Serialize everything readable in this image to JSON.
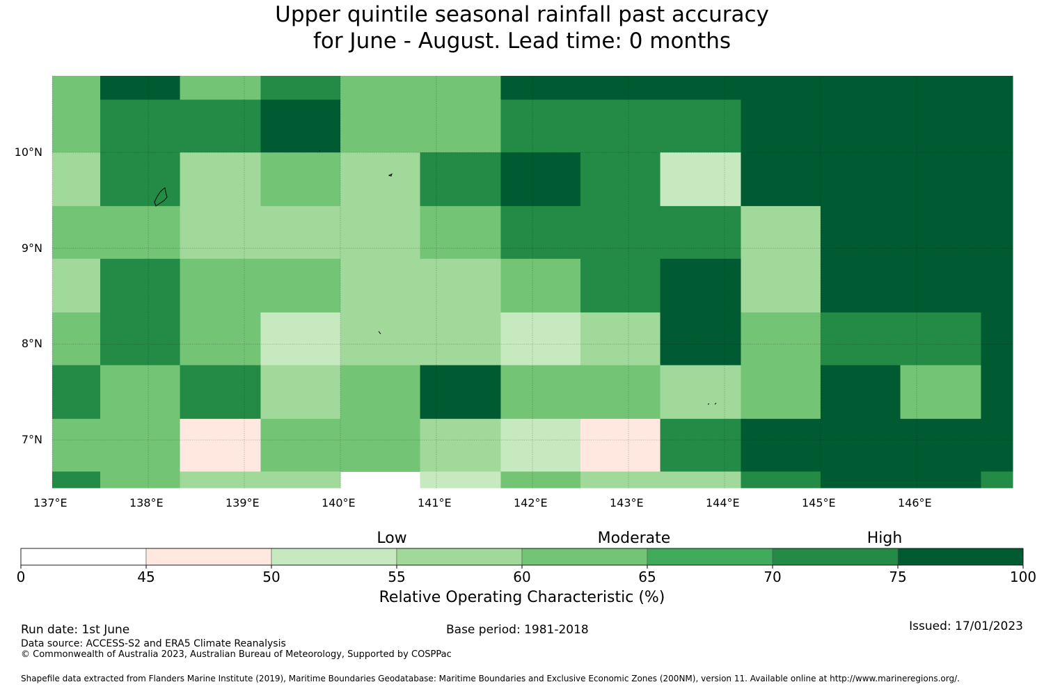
{
  "title": {
    "line1": "Upper quintile seasonal rainfall past accuracy",
    "line2": "for June - August. Lead time: 0 months"
  },
  "map": {
    "lon_labels": [
      "137°E",
      "138°E",
      "139°E",
      "140°E",
      "141°E",
      "142°E",
      "143°E",
      "144°E",
      "145°E",
      "146°E"
    ],
    "lat_labels": [
      "10°N",
      "9°N",
      "8°N",
      "7°N"
    ],
    "grid_lon_edges": [
      137.0,
      137.5,
      138.33,
      139.17,
      140.0,
      140.83,
      141.67,
      142.5,
      143.33,
      144.17,
      145.0,
      145.83,
      146.67,
      147.0
    ],
    "grid_lat_edges_top_to_bottom": [
      10.8,
      10.55,
      10.0,
      9.44,
      8.89,
      8.33,
      7.78,
      7.22,
      6.67,
      6.5
    ],
    "cells_color_class": [
      [
        4,
        7,
        4,
        6,
        4,
        4,
        7,
        7,
        7,
        7,
        7,
        7,
        7
      ],
      [
        4,
        6,
        6,
        7,
        4,
        4,
        6,
        6,
        6,
        7,
        7,
        7,
        7
      ],
      [
        3,
        6,
        3,
        4,
        3,
        6,
        7,
        6,
        2,
        7,
        7,
        7,
        7
      ],
      [
        4,
        4,
        3,
        3,
        3,
        4,
        6,
        6,
        6,
        3,
        7,
        7,
        7
      ],
      [
        3,
        6,
        4,
        4,
        3,
        3,
        4,
        6,
        7,
        3,
        7,
        7,
        7
      ],
      [
        4,
        6,
        4,
        2,
        3,
        3,
        2,
        3,
        7,
        4,
        6,
        6,
        7
      ],
      [
        6,
        4,
        6,
        3,
        4,
        7,
        4,
        4,
        3,
        4,
        7,
        4,
        7
      ],
      [
        4,
        4,
        1,
        4,
        4,
        3,
        2,
        1,
        6,
        7,
        7,
        7,
        7
      ],
      [
        6,
        4,
        3,
        3,
        -1,
        2,
        4,
        3,
        3,
        6,
        7,
        7,
        6
      ]
    ]
  },
  "colorbar": {
    "colors": [
      "#ffffff",
      "#fee8e0",
      "#c7e9c0",
      "#a1d99b",
      "#74c476",
      "#41ab5d",
      "#238b45",
      "#005a32"
    ],
    "ticks": [
      "0",
      "45",
      "50",
      "55",
      "60",
      "65",
      "70",
      "75",
      "100"
    ],
    "categories": [
      "Low",
      "Moderate",
      "High"
    ],
    "label": "Relative Operating Characteristic (%)"
  },
  "footer": {
    "run_date": "Run date: 1st June",
    "base_period": "Base period: 1981-2018",
    "issued": "Issued: 17/01/2023",
    "data_source": "Data source: ACCESS-S2 and ERA5 Climate Reanalysis",
    "copyright": "© Commonwealth of Australia 2023, Australian Bureau of Meteorology, Supported by COSPPac",
    "shapefile": "Shapefile data extracted from Flanders Marine Institute (2019), Maritime Boundaries Geodatabase: Maritime Boundaries and Exclusive Economic Zones (200NM), version 11. Available online at http://www.marineregions.org/."
  }
}
